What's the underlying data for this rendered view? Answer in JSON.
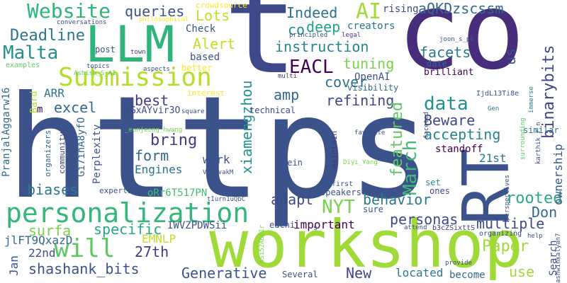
{
  "words": [
    {
      "text": "https",
      "color": "#3b528b"
    },
    {
      "text": "t",
      "color": "#3e4989"
    },
    {
      "text": "co",
      "color": "#472d7b"
    },
    {
      "text": "workshop",
      "color": "#a0da39"
    },
    {
      "text": "RT",
      "color": "#3b528b"
    },
    {
      "text": "LLM",
      "color": "#2fb47c"
    },
    {
      "text": "personalization",
      "color": "#35b779"
    },
    {
      "text": "Submission",
      "color": "#b5de2b"
    },
    {
      "text": "Website",
      "color": "#2fb47c"
    },
    {
      "text": "Malta",
      "color": "#21918c"
    },
    {
      "text": "Deadline",
      "color": "#2a788e"
    },
    {
      "text": "EACL",
      "color": "#440154"
    },
    {
      "text": "AI",
      "color": "#a0da39"
    },
    {
      "text": "aQKDzscssm",
      "color": "#31688e"
    },
    {
      "text": "Indeed",
      "color": "#2c728e"
    },
    {
      "text": "queries",
      "color": "#3b528b"
    },
    {
      "text": "Lots",
      "color": "#bddf26"
    },
    {
      "text": "crowdsource",
      "color": "#fde725"
    },
    {
      "text": "rising",
      "color": "#3e4989"
    },
    {
      "text": "creators",
      "color": "#2c728e"
    },
    {
      "text": "deep",
      "color": "#20a486"
    },
    {
      "text": "co",
      "color": "#21918c"
    },
    {
      "text": "Alert",
      "color": "#bddf26"
    },
    {
      "text": "instruction",
      "color": "#25848e"
    },
    {
      "text": "tuning",
      "color": "#7ad151"
    },
    {
      "text": "facets",
      "color": "#2a788e"
    },
    {
      "text": "us",
      "color": "#3b528b"
    },
    {
      "text": "binarybits",
      "color": "#414487"
    },
    {
      "text": "xiamengzhou",
      "color": "#21918c"
    },
    {
      "text": "amp",
      "color": "#31688e"
    },
    {
      "text": "cover",
      "color": "#2c728e"
    },
    {
      "text": "refining",
      "color": "#404688"
    },
    {
      "text": "data",
      "color": "#21918c"
    },
    {
      "text": "best",
      "color": "#443983"
    },
    {
      "text": "excel",
      "color": "#31688e"
    },
    {
      "text": "ARR",
      "color": "#2c728e"
    },
    {
      "text": "bring",
      "color": "#443983"
    },
    {
      "text": "form",
      "color": "#31688e"
    },
    {
      "text": "Beware",
      "color": "#3e4989"
    },
    {
      "text": "accepting",
      "color": "#25848e"
    },
    {
      "text": "March",
      "color": "#3fbc73"
    },
    {
      "text": "featured",
      "color": "#5ec962"
    },
    {
      "text": "standoff",
      "color": "#440154"
    },
    {
      "text": "21st",
      "color": "#2a788e"
    },
    {
      "text": "work",
      "color": "#3b528b"
    },
    {
      "text": "Engines",
      "color": "#2c728e"
    },
    {
      "text": "Perplexity",
      "color": "#3b528b"
    },
    {
      "text": "biases",
      "color": "#2a788e"
    },
    {
      "text": "adapt",
      "color": "#3e4989"
    },
    {
      "text": "NYT",
      "color": "#7ad151"
    },
    {
      "text": "behavior",
      "color": "#2a788e"
    },
    {
      "text": "rooted",
      "color": "#26ad81"
    },
    {
      "text": "Don",
      "color": "#31688e"
    },
    {
      "text": "surfa",
      "color": "#7ad151"
    },
    {
      "text": "specific",
      "color": "#22a884"
    },
    {
      "text": "personas",
      "color": "#3e4989"
    },
    {
      "text": "multiple",
      "color": "#3e4989"
    },
    {
      "text": "Paper",
      "color": "#a0da39"
    },
    {
      "text": "ownership",
      "color": "#38588c"
    },
    {
      "text": "Search",
      "color": "#3b528b"
    },
    {
      "text": "will",
      "color": "#5ec962"
    },
    {
      "text": "EMNLP",
      "color": "#bddf26"
    },
    {
      "text": "27th",
      "color": "#443983"
    },
    {
      "text": "22nd",
      "color": "#3b528b"
    },
    {
      "text": "Jan",
      "color": "#3b528b"
    },
    {
      "text": "shashank_bits",
      "color": "#3b528b"
    },
    {
      "text": "Generative",
      "color": "#3b528b"
    },
    {
      "text": "New",
      "color": "#414487"
    },
    {
      "text": "located",
      "color": "#2a788e"
    },
    {
      "text": "use",
      "color": "#a0da39"
    },
    {
      "text": "become",
      "color": "#31688e"
    },
    {
      "text": "important",
      "color": "#440154"
    },
    {
      "text": "jlFT9QxazD",
      "color": "#31688e"
    },
    {
      "text": "IWVZPDWSii",
      "color": "#3b528b"
    },
    {
      "text": "oRr6T517PN",
      "color": "#3fbc73"
    },
    {
      "text": "4GxAYvir3O",
      "color": "#3e4989"
    },
    {
      "text": "PranjalAggarw16",
      "color": "#31688e"
    },
    {
      "text": "Gi7ihA8yfO",
      "color": "#31688e"
    },
    {
      "text": "m",
      "color": "#440154"
    },
    {
      "text": "Bard",
      "color": "#b5de2b"
    },
    {
      "text": "post",
      "color": "#3b528b"
    },
    {
      "text": "based",
      "color": "#3b528b"
    },
    {
      "text": "Check",
      "color": "#3b528b"
    },
    {
      "text": "better",
      "color": "#fde725"
    },
    {
      "text": "interest",
      "color": "#fde725"
    },
    {
      "text": "technical",
      "color": "#3e4989"
    },
    {
      "text": "OpenAI",
      "color": "#3b528b"
    },
    {
      "text": "visibility",
      "color": "#31688e"
    },
    {
      "text": "date",
      "color": "#31688e"
    },
    {
      "text": "brilliant",
      "color": "#440154"
    },
    {
      "text": "conversations",
      "color": "#3e4989"
    },
    {
      "text": "philosophical",
      "color": "#fde725"
    },
    {
      "text": "examples",
      "color": "#5ec962"
    },
    {
      "text": "topics",
      "color": "#3e4989"
    },
    {
      "text": "town",
      "color": "#443983"
    },
    {
      "text": "aspects",
      "color": "#3b528b"
    },
    {
      "text": "Ashish_S_AI",
      "color": "#5ec962"
    },
    {
      "text": "principled",
      "color": "#3b528b"
    },
    {
      "text": "legal",
      "color": "#443983"
    },
    {
      "text": "joon_s_pk",
      "color": "#3b528b"
    },
    {
      "text": "multi",
      "color": "#443983"
    },
    {
      "text": "IjdL13Ti8e",
      "color": "#3b528b"
    },
    {
      "text": "faceted",
      "color": "#3e4989"
    },
    {
      "text": "Gen",
      "color": "#2a788e"
    },
    {
      "text": "immerse",
      "color": "#25848e"
    },
    {
      "text": "karthik_r_n",
      "color": "#3e4989"
    },
    {
      "text": "surrounding",
      "color": "#5ec962"
    },
    {
      "text": "perspectives",
      "color": "#3b528b"
    },
    {
      "text": "similar",
      "color": "#2c728e"
    },
    {
      "text": "set",
      "color": "#21918c"
    },
    {
      "text": "ones",
      "color": "#3e4989"
    },
    {
      "text": "first",
      "color": "#3e4989"
    },
    {
      "text": "sure",
      "color": "#3b528b"
    },
    {
      "text": "attend",
      "color": "#3e4989"
    },
    {
      "text": "b3cZSixttS",
      "color": "#443983"
    },
    {
      "text": "organizing",
      "color": "#3e4989"
    },
    {
      "text": "provide",
      "color": "#3e4989"
    },
    {
      "text": "Several",
      "color": "#3b528b"
    },
    {
      "text": "edchi",
      "color": "#3b528b"
    },
    {
      "text": "speakers",
      "color": "#3b528b"
    },
    {
      "text": "Submit",
      "color": "#3b528b"
    },
    {
      "text": "tIurn1uQbC",
      "color": "#3b528b"
    },
    {
      "text": "VishvakM",
      "color": "#3b528b"
    },
    {
      "text": "expertise",
      "color": "#3b528b"
    },
    {
      "text": "organizers",
      "color": "#31688e"
    },
    {
      "text": "community",
      "color": "#3e4989"
    },
    {
      "text": "maintain",
      "color": "#443983"
    },
    {
      "text": "vein",
      "color": "#3b528b"
    },
    {
      "text": "Diyi_Yang",
      "color": "#7ad151"
    },
    {
      "text": "favorite",
      "color": "#3b528b"
    },
    {
      "text": "square",
      "color": "#3b528b"
    },
    {
      "text": "_eunjeong_hwang",
      "color": "#7ad151"
    },
    {
      "text": "help",
      "color": "#3b528b"
    },
    {
      "text": "ashwinkalyan7",
      "color": "#3e4989"
    },
    {
      "text": "aSi52A6pIr",
      "color": "#7ad151"
    },
    {
      "text": "s",
      "color": "#3b528b"
    }
  ]
}
